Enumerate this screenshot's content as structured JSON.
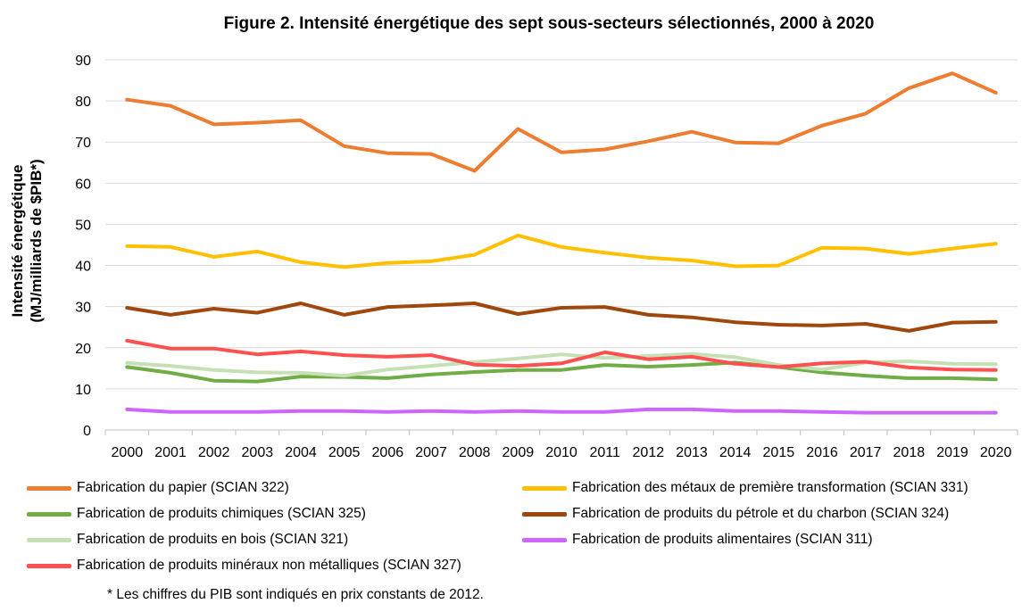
{
  "chart_data": {
    "type": "line",
    "title": "Figure 2. Intensité énergétique des sept sous-secteurs sélectionnés, 2000 à 2020",
    "ylabel_line1": "Intensité énergétique",
    "ylabel_line2": "(MJ/milliards de $PIB*)",
    "xlabel": "",
    "x": [
      "2000",
      "2001",
      "2002",
      "2003",
      "2004",
      "2005",
      "2006",
      "2007",
      "2008",
      "2009",
      "2010",
      "2011",
      "2012",
      "2013",
      "2014",
      "2015",
      "2016",
      "2017",
      "2018",
      "2019",
      "2020"
    ],
    "ylim": [
      0,
      90
    ],
    "yticks": [
      0,
      10,
      20,
      30,
      40,
      50,
      60,
      70,
      80,
      90
    ],
    "grid": true,
    "legend_position": "bottom",
    "series": [
      {
        "name": "Fabrication du papier (SCIAN 322)",
        "color": "#ED7D31",
        "values": [
          80.3,
          78.8,
          74.3,
          74.7,
          75.3,
          69.0,
          67.3,
          67.1,
          63.0,
          73.2,
          67.5,
          68.2,
          70.2,
          72.5,
          69.9,
          69.7,
          74.0,
          76.9,
          83.1,
          86.7,
          82.0
        ]
      },
      {
        "name": "Fabrication des métaux de première transformation (SCIAN 331)",
        "color": "#FFC000",
        "values": [
          44.7,
          44.5,
          42.1,
          43.4,
          40.8,
          39.6,
          40.6,
          41.0,
          42.6,
          47.3,
          44.5,
          43.1,
          41.9,
          41.2,
          39.8,
          40.0,
          44.3,
          44.1,
          42.8,
          44.1,
          45.3
        ]
      },
      {
        "name": "Fabrication de produits chimiques (SCIAN 325)",
        "color": "#70AD47",
        "values": [
          15.3,
          13.9,
          12.0,
          11.8,
          13.0,
          12.9,
          12.6,
          13.5,
          14.1,
          14.6,
          14.6,
          15.8,
          15.4,
          15.8,
          16.4,
          15.3,
          14.0,
          13.2,
          12.6,
          12.6,
          12.3
        ]
      },
      {
        "name": "Fabrication de produits du pétrole et du charbon (SCIAN 324)",
        "color": "#9E480E",
        "values": [
          29.7,
          28.0,
          29.5,
          28.5,
          30.8,
          28.0,
          29.9,
          30.3,
          30.8,
          28.2,
          29.7,
          29.9,
          28.0,
          27.4,
          26.2,
          25.6,
          25.4,
          25.8,
          24.1,
          26.1,
          26.3
        ]
      },
      {
        "name": "Fabrication de produits en bois (SCIAN 321)",
        "color": "#C5E0B4",
        "values": [
          16.3,
          15.6,
          14.6,
          14.0,
          13.9,
          13.2,
          14.7,
          15.6,
          16.5,
          17.4,
          18.4,
          17.5,
          18.0,
          18.5,
          17.7,
          15.8,
          14.7,
          16.4,
          16.7,
          16.1,
          16.0
        ]
      },
      {
        "name": "Fabrication de produits alimentaires (SCIAN 311)",
        "color": "#CC66FF",
        "values": [
          5.0,
          4.4,
          4.4,
          4.4,
          4.6,
          4.6,
          4.4,
          4.6,
          4.4,
          4.6,
          4.4,
          4.4,
          5.0,
          5.0,
          4.6,
          4.6,
          4.4,
          4.2,
          4.2,
          4.2,
          4.2
        ]
      },
      {
        "name": "Fabrication de produits minéraux non métalliques (SCIAN 327)",
        "color": "#FF5050",
        "values": [
          21.7,
          19.8,
          19.8,
          18.4,
          19.1,
          18.2,
          17.8,
          18.2,
          15.9,
          15.6,
          16.2,
          18.9,
          17.2,
          17.8,
          16.1,
          15.3,
          16.2,
          16.6,
          15.2,
          14.7,
          14.6
        ]
      }
    ],
    "footnote": "* Les chiffres du PIB sont indiqués en prix constants de 2012."
  }
}
